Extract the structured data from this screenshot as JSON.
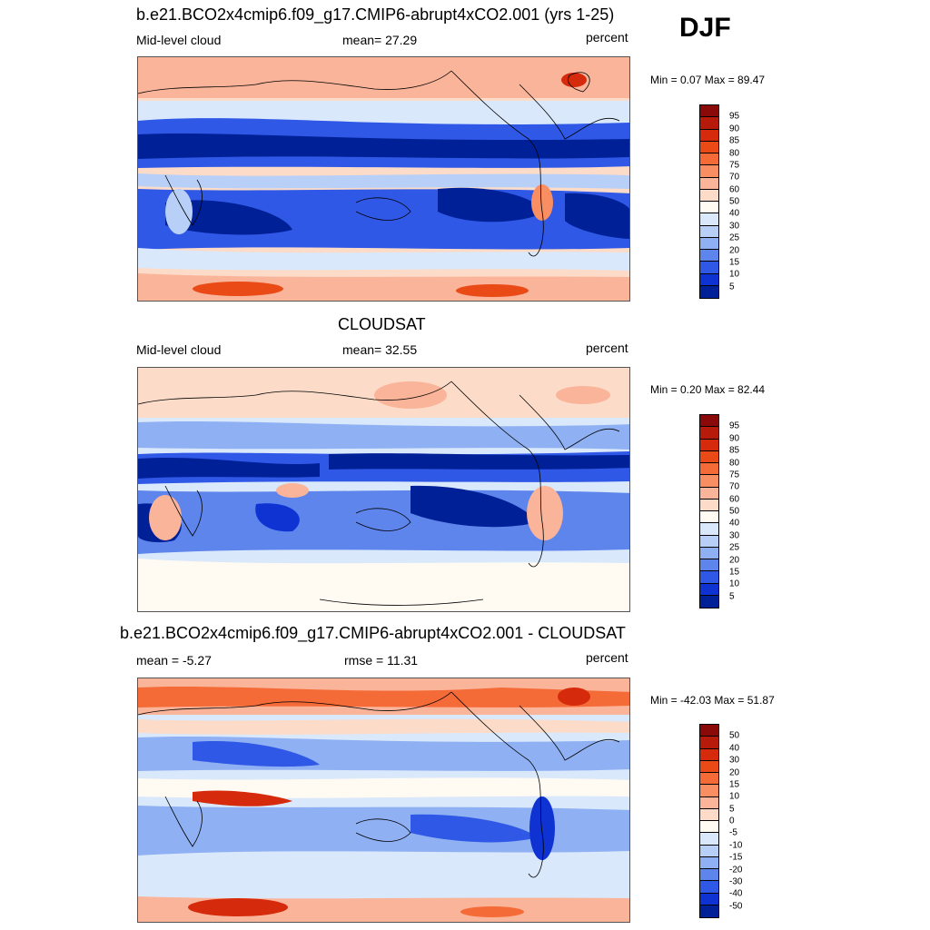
{
  "season": "DJF",
  "panels": [
    {
      "title": "b.e21.BCO2x4cmip6.f09_g17.CMIP6-abrupt4xCO2.001 (yrs 1-25)",
      "left_label": "Mid-level cloud",
      "center_label": "mean=  27.29",
      "right_label": "percent",
      "minmax": "Min =   0.07 Max =  89.47",
      "colorbar": {
        "labels": [
          "95",
          "90",
          "85",
          "80",
          "75",
          "70",
          "60",
          "50",
          "40",
          "30",
          "25",
          "20",
          "15",
          "10",
          "5"
        ],
        "colors": [
          "#8a0a0a",
          "#b51a0a",
          "#d52a0c",
          "#ea4a16",
          "#f56b38",
          "#f98e62",
          "#fab49a",
          "#fcdcc8",
          "#fffaf2",
          "#d9e8fb",
          "#b8d0f8",
          "#8fb0f3",
          "#5e85ec",
          "#2f58e6",
          "#0f33d2",
          "#002098"
        ]
      }
    },
    {
      "title": "CLOUDSAT",
      "left_label": "Mid-level cloud",
      "center_label": "mean=  32.55",
      "right_label": "percent",
      "minmax": "Min =   0.20 Max =  82.44",
      "colorbar": {
        "labels": [
          "95",
          "90",
          "85",
          "80",
          "75",
          "70",
          "60",
          "50",
          "40",
          "30",
          "25",
          "20",
          "15",
          "10",
          "5"
        ],
        "colors": [
          "#8a0a0a",
          "#b51a0a",
          "#d52a0c",
          "#ea4a16",
          "#f56b38",
          "#f98e62",
          "#fab49a",
          "#fcdcc8",
          "#fffaf2",
          "#d9e8fb",
          "#b8d0f8",
          "#8fb0f3",
          "#5e85ec",
          "#2f58e6",
          "#0f33d2",
          "#002098"
        ]
      }
    },
    {
      "title": "b.e21.BCO2x4cmip6.f09_g17.CMIP6-abrupt4xCO2.001 - CLOUDSAT",
      "left_label": "mean =  -5.27",
      "center_label": "rmse =  11.31",
      "right_label": "percent",
      "minmax": "Min = -42.03 Max =  51.87",
      "colorbar": {
        "labels": [
          "50",
          "40",
          "30",
          "20",
          "15",
          "10",
          "5",
          "0",
          "-5",
          "-10",
          "-15",
          "-20",
          "-30",
          "-40",
          "-50"
        ],
        "colors": [
          "#8a0a0a",
          "#b51a0a",
          "#d52a0c",
          "#ea4a16",
          "#f56b38",
          "#f98e62",
          "#fab49a",
          "#fcdcc8",
          "#fffaf2",
          "#d9e8fb",
          "#b8d0f8",
          "#8fb0f3",
          "#5e85ec",
          "#2f58e6",
          "#0f33d2",
          "#002098"
        ]
      }
    }
  ]
}
